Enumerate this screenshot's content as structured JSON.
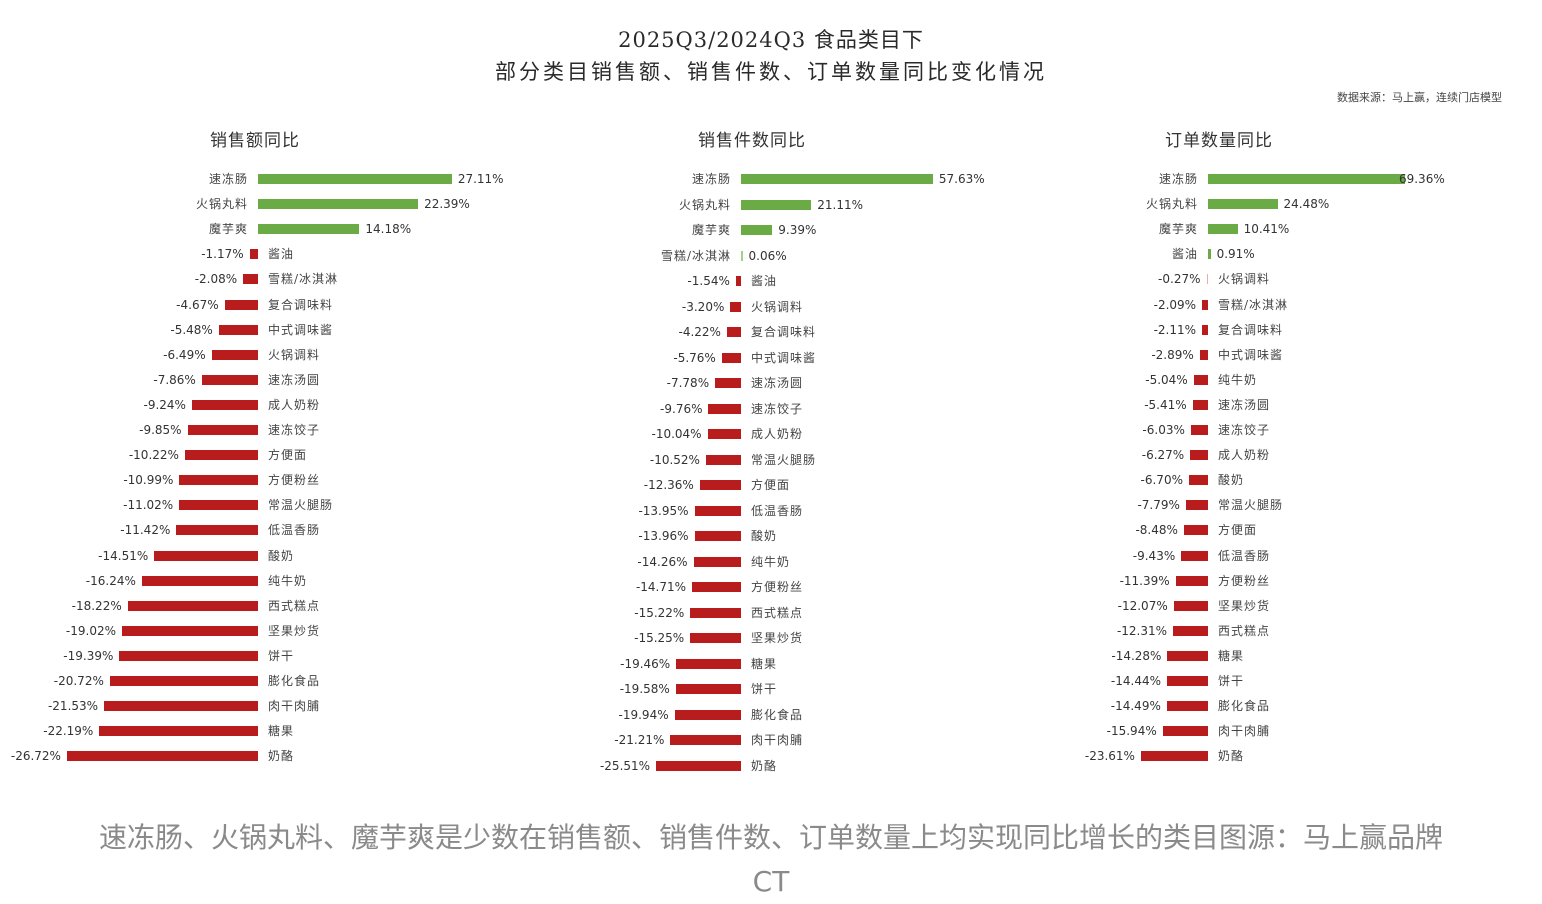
{
  "header": {
    "title_line1": "2025Q3/2024Q3 食品类目下",
    "title_line2": "部分类目销售额、销售件数、订单数量同比变化情况",
    "source": "数据来源：马上赢，连续门店模型"
  },
  "caption": {
    "line1": "速冻肠、火锅丸料、魔芋爽是少数在销售额、销售件数、订单数量上均实现同比增长的类目图源：马上赢品牌",
    "line2": "CT"
  },
  "colors": {
    "positive": "#6aab46",
    "negative": "#b81c1c"
  },
  "chart_data": [
    {
      "type": "bar",
      "orientation": "horizontal",
      "title": "销售额同比",
      "unit": "%",
      "categories": [
        "速冻肠",
        "火锅丸料",
        "魔芋爽",
        "酱油",
        "雪糕/冰淇淋",
        "复合调味料",
        "中式调味酱",
        "火锅调料",
        "速冻汤圆",
        "成人奶粉",
        "速冻饺子",
        "方便面",
        "方便粉丝",
        "常温火腿肠",
        "低温香肠",
        "酸奶",
        "纯牛奶",
        "西式糕点",
        "坚果炒货",
        "饼干",
        "膨化食品",
        "肉干肉脯",
        "糖果",
        "奶酪"
      ],
      "values": [
        27.11,
        22.39,
        14.18,
        -1.17,
        -2.08,
        -4.67,
        -5.48,
        -6.49,
        -7.86,
        -9.24,
        -9.85,
        -10.22,
        -10.99,
        -11.02,
        -11.42,
        -14.51,
        -16.24,
        -18.22,
        -19.02,
        -19.39,
        -20.72,
        -21.53,
        -22.19,
        -26.72
      ],
      "labels": [
        "27.11%",
        "22.39%",
        "14.18%",
        "-1.17%",
        "-2.08%",
        "-4.67%",
        "-5.48%",
        "-6.49%",
        "-7.86%",
        "-9.24%",
        "-9.85%",
        "-10.22%",
        "-10.99%",
        "-11.02%",
        "-11.42%",
        "-14.51%",
        "-16.24%",
        "-18.22%",
        "-19.02%",
        "-19.39%",
        "-20.72%",
        "-21.53%",
        "-22.19%",
        "-26.72%"
      ],
      "grid": false
    },
    {
      "type": "bar",
      "orientation": "horizontal",
      "title": "销售件数同比",
      "unit": "%",
      "categories": [
        "速冻肠",
        "火锅丸料",
        "魔芋爽",
        "雪糕/冰淇淋",
        "酱油",
        "火锅调料",
        "复合调味料",
        "中式调味酱",
        "速冻汤圆",
        "速冻饺子",
        "成人奶粉",
        "常温火腿肠",
        "方便面",
        "低温香肠",
        "酸奶",
        "纯牛奶",
        "方便粉丝",
        "西式糕点",
        "坚果炒货",
        "糖果",
        "饼干",
        "膨化食品",
        "肉干肉脯",
        "奶酪"
      ],
      "values": [
        57.63,
        21.11,
        9.39,
        0.06,
        -1.54,
        -3.2,
        -4.22,
        -5.76,
        -7.78,
        -9.76,
        -10.04,
        -10.52,
        -12.36,
        -13.95,
        -13.96,
        -14.26,
        -14.71,
        -15.22,
        -15.25,
        -19.46,
        -19.58,
        -19.94,
        -21.21,
        -25.51
      ],
      "labels": [
        "57.63%",
        "21.11%",
        "9.39%",
        "0.06%",
        "-1.54%",
        "-3.20%",
        "-4.22%",
        "-5.76%",
        "-7.78%",
        "-9.76%",
        "-10.04%",
        "-10.52%",
        "-12.36%",
        "-13.95%",
        "-13.96%",
        "-14.26%",
        "-14.71%",
        "-15.22%",
        "-15.25%",
        "-19.46%",
        "-19.58%",
        "-19.94%",
        "-21.21%",
        "-25.51%"
      ],
      "grid": false
    },
    {
      "type": "bar",
      "orientation": "horizontal",
      "title": "订单数量同比",
      "unit": "%",
      "categories": [
        "速冻肠",
        "火锅丸料",
        "魔芋爽",
        "酱油",
        "火锅调料",
        "雪糕/冰淇淋",
        "复合调味料",
        "中式调味酱",
        "纯牛奶",
        "速冻汤圆",
        "速冻饺子",
        "成人奶粉",
        "酸奶",
        "常温火腿肠",
        "方便面",
        "低温香肠",
        "方便粉丝",
        "坚果炒货",
        "西式糕点",
        "糖果",
        "饼干",
        "膨化食品",
        "肉干肉脯",
        "奶酪"
      ],
      "values": [
        69.36,
        24.48,
        10.41,
        0.91,
        -0.27,
        -2.09,
        -2.11,
        -2.89,
        -5.04,
        -5.41,
        -6.03,
        -6.27,
        -6.7,
        -7.79,
        -8.48,
        -9.43,
        -11.39,
        -12.07,
        -12.31,
        -14.28,
        -14.44,
        -14.49,
        -15.94,
        -23.61
      ],
      "labels": [
        "69.36%",
        "24.48%",
        "10.41%",
        "0.91%",
        "-0.27%",
        "-2.09%",
        "-2.11%",
        "-2.89%",
        "-5.04%",
        "-5.41%",
        "-6.03%",
        "-6.27%",
        "-6.70%",
        "-7.79%",
        "-8.48%",
        "-9.43%",
        "-11.39%",
        "-12.07%",
        "-12.31%",
        "-14.28%",
        "-14.44%",
        "-14.49%",
        "-15.94%",
        "-23.61%"
      ],
      "grid": false
    }
  ]
}
